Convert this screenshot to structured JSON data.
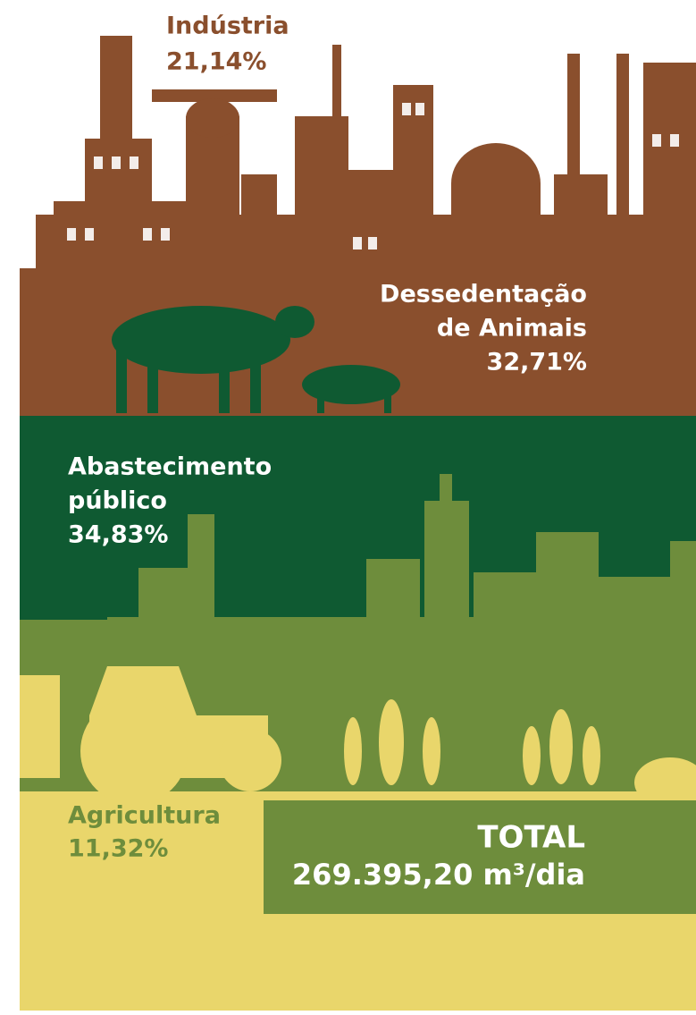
{
  "sectors": [
    {
      "label_lines": [
        "Indústria"
      ],
      "share": "21,14%"
    },
    {
      "label_lines": [
        "Dessedentação",
        "de Animais"
      ],
      "share": "32,71%"
    },
    {
      "label_lines": [
        "Abastecimento",
        "público"
      ],
      "share": "34,83%"
    },
    {
      "label_lines": [
        "Agricultura"
      ],
      "share": "11,32%"
    }
  ],
  "total": {
    "title": "TOTAL",
    "value": "269.395,20 m³/dia"
  }
}
